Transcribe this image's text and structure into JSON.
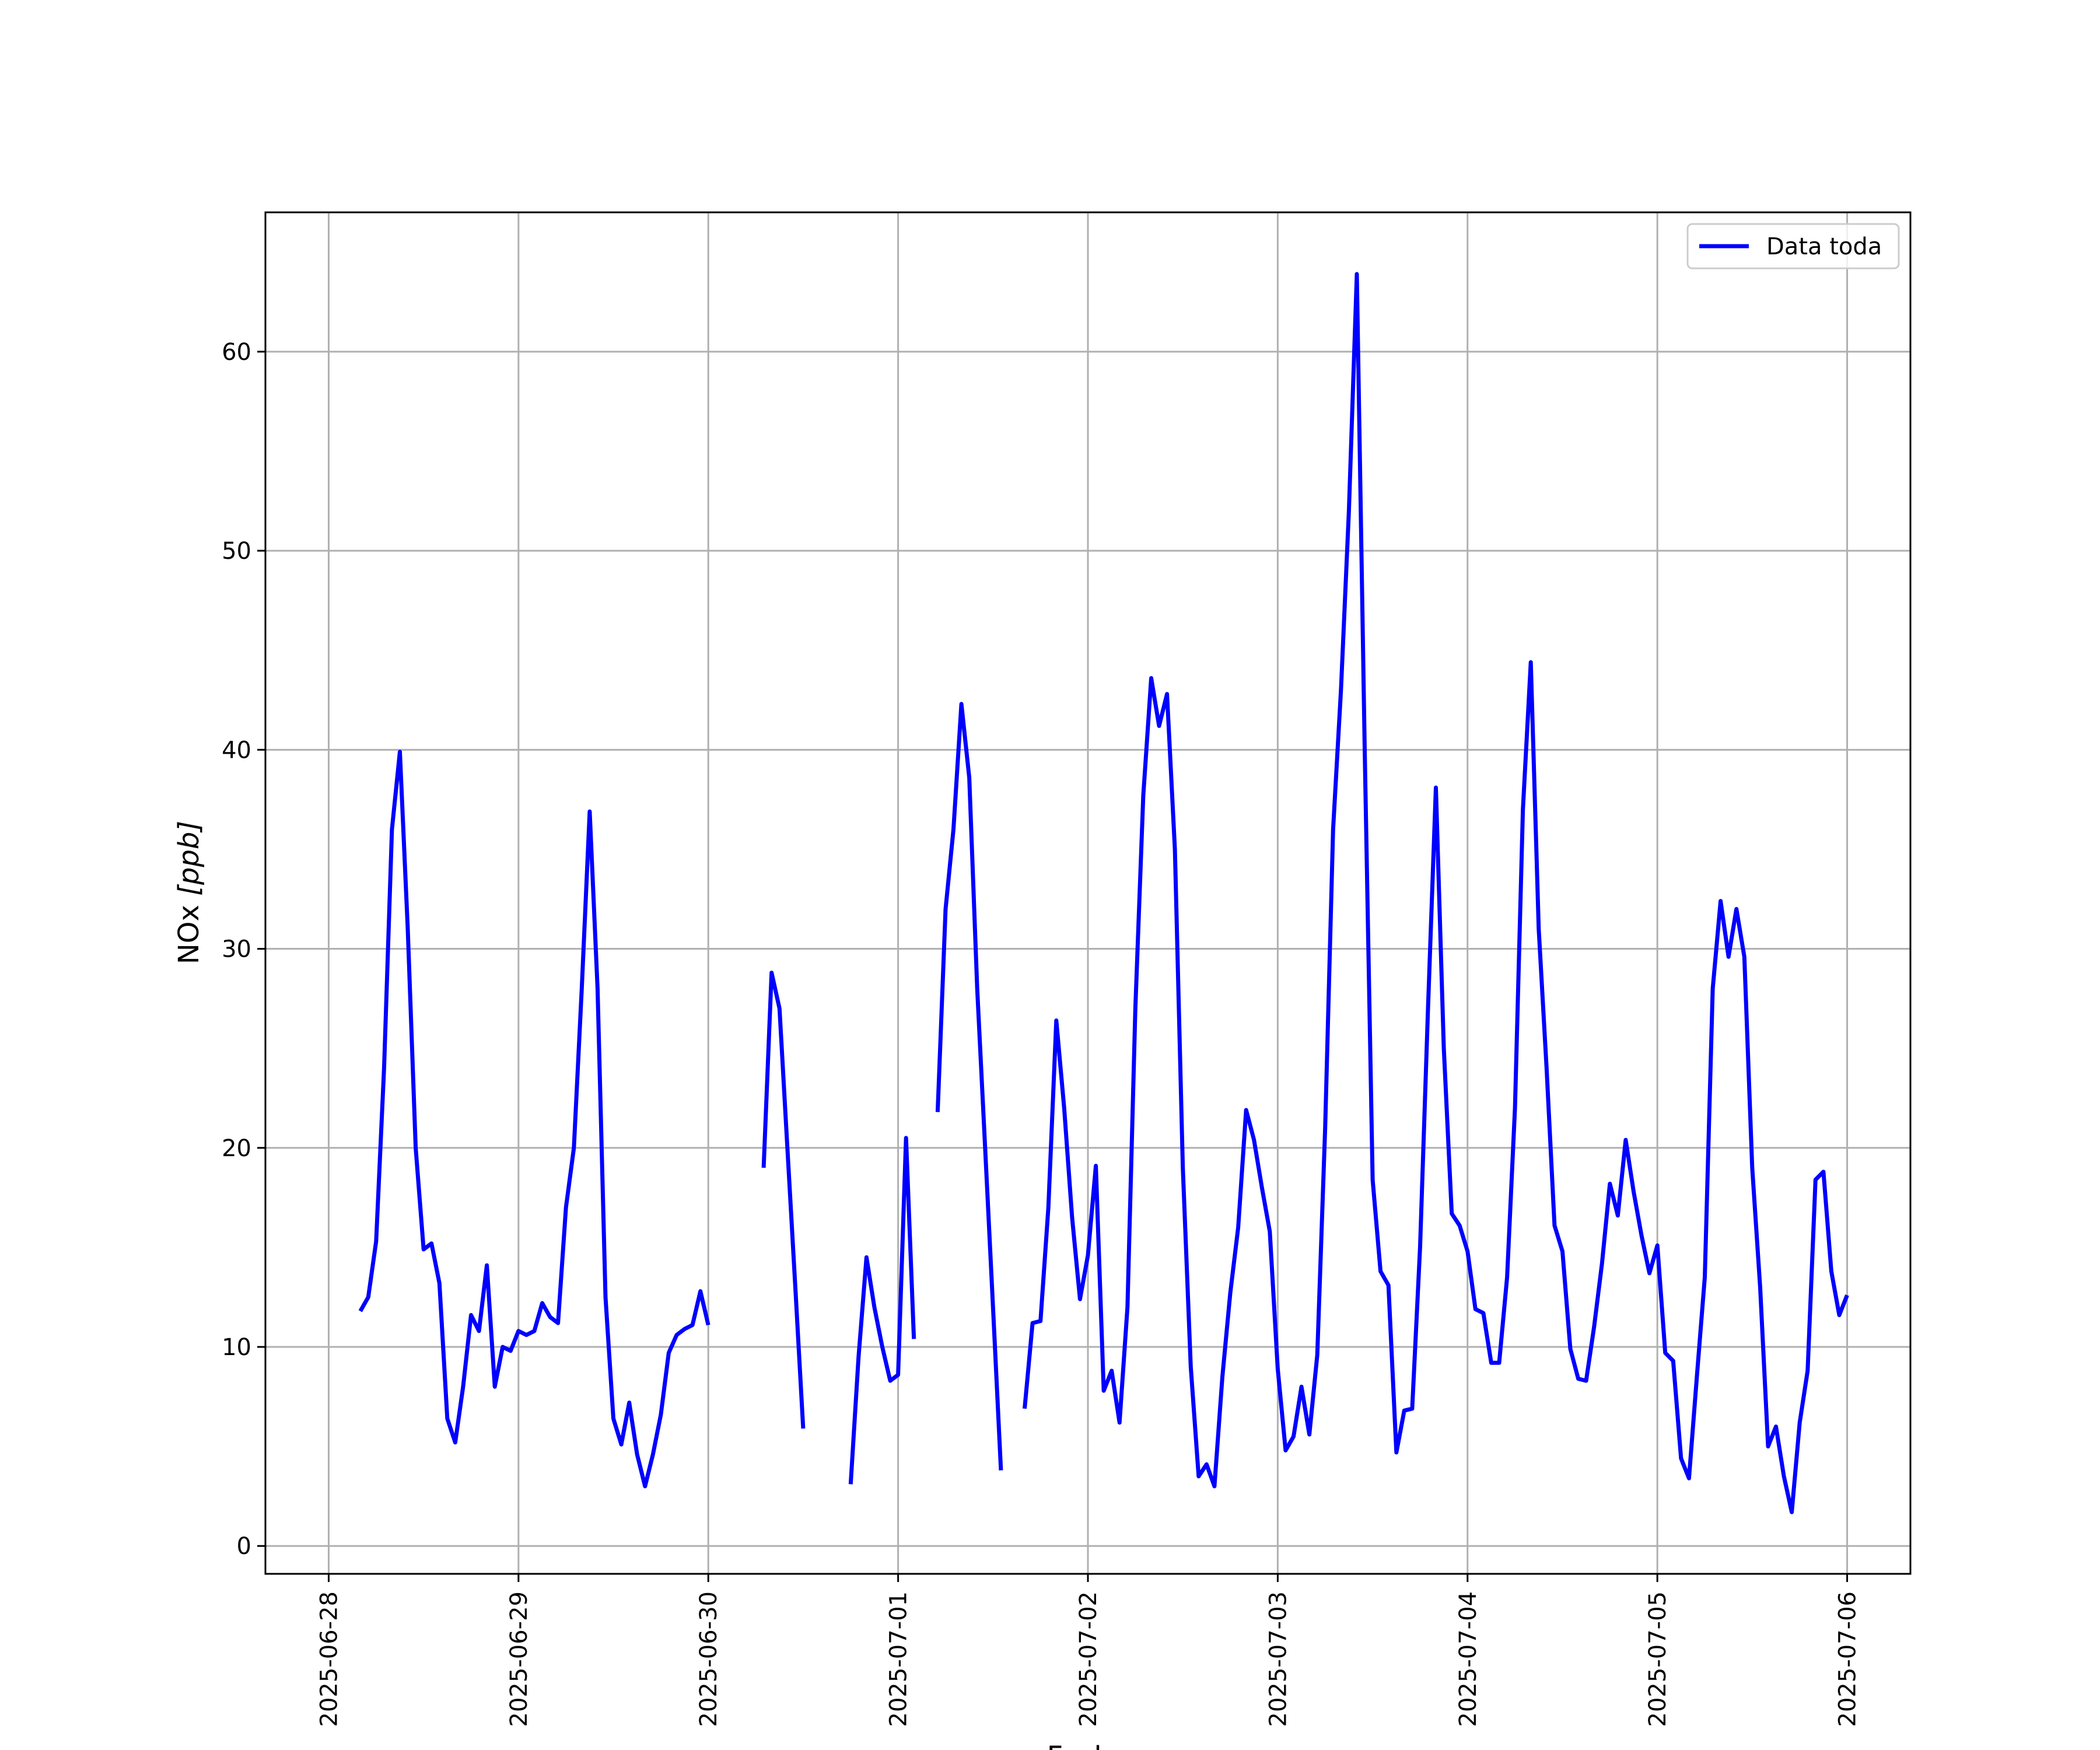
{
  "chart_data": {
    "type": "line",
    "title": "",
    "xlabel": "Fecha",
    "ylabel_prefix": "NOx ",
    "ylabel_unit": "[ppb]",
    "xlim": [
      "2025-06-27T16:00",
      "2025-07-06T08:00"
    ],
    "ylim": [
      -1.4,
      67
    ],
    "x_ticks": [
      "2025-06-28",
      "2025-06-29",
      "2025-06-30",
      "2025-07-01",
      "2025-07-02",
      "2025-07-03",
      "2025-07-04",
      "2025-07-05",
      "2025-07-06"
    ],
    "y_ticks": [
      "0",
      "10",
      "20",
      "30",
      "40",
      "50",
      "60"
    ],
    "y_tick_values": [
      0,
      10,
      20,
      30,
      40,
      50,
      60
    ],
    "grid": true,
    "legend_position": "top-right",
    "series_color": "#0000ff",
    "series": [
      {
        "name": "Data toda",
        "segments": [
          [
            [
              "2025-06-28T04:00",
              11.8
            ],
            [
              "2025-06-28T05:00",
              12.5
            ],
            [
              "2025-06-28T06:00",
              15.3
            ],
            [
              "2025-06-28T07:00",
              24.0
            ],
            [
              "2025-06-28T08:00",
              36.0
            ],
            [
              "2025-06-28T09:00",
              39.9
            ],
            [
              "2025-06-28T10:00",
              31.0
            ],
            [
              "2025-06-28T11:00",
              20.0
            ],
            [
              "2025-06-28T12:00",
              14.9
            ],
            [
              "2025-06-28T13:00",
              15.2
            ],
            [
              "2025-06-28T14:00",
              13.2
            ],
            [
              "2025-06-28T15:00",
              6.4
            ],
            [
              "2025-06-28T16:00",
              5.2
            ],
            [
              "2025-06-28T17:00",
              8.0
            ],
            [
              "2025-06-28T18:00",
              11.6
            ],
            [
              "2025-06-28T19:00",
              10.8
            ],
            [
              "2025-06-28T20:00",
              14.1
            ],
            [
              "2025-06-28T21:00",
              8.0
            ],
            [
              "2025-06-28T22:00",
              10.0
            ],
            [
              "2025-06-28T23:00",
              9.8
            ],
            [
              "2025-06-29T00:00",
              10.8
            ],
            [
              "2025-06-29T01:00",
              10.6
            ],
            [
              "2025-06-29T02:00",
              10.8
            ],
            [
              "2025-06-29T03:00",
              12.2
            ],
            [
              "2025-06-29T04:00",
              11.5
            ],
            [
              "2025-06-29T05:00",
              11.2
            ],
            [
              "2025-06-29T06:00",
              17.0
            ],
            [
              "2025-06-29T07:00",
              20.0
            ],
            [
              "2025-06-29T08:00",
              28.0
            ],
            [
              "2025-06-29T09:00",
              36.9
            ],
            [
              "2025-06-29T10:00",
              28.0
            ],
            [
              "2025-06-29T11:00",
              12.5
            ],
            [
              "2025-06-29T12:00",
              6.4
            ],
            [
              "2025-06-29T13:00",
              5.1
            ],
            [
              "2025-06-29T14:00",
              7.2
            ],
            [
              "2025-06-29T15:00",
              4.6
            ],
            [
              "2025-06-29T16:00",
              3.0
            ],
            [
              "2025-06-29T17:00",
              4.6
            ],
            [
              "2025-06-29T18:00",
              6.6
            ],
            [
              "2025-06-29T19:00",
              9.7
            ],
            [
              "2025-06-29T20:00",
              10.6
            ],
            [
              "2025-06-29T21:00",
              10.9
            ],
            [
              "2025-06-29T22:00",
              11.1
            ],
            [
              "2025-06-29T23:00",
              12.8
            ],
            [
              "2025-06-30T00:00",
              11.1
            ]
          ],
          [
            [
              "2025-06-30T07:00",
              19.0
            ],
            [
              "2025-06-30T08:00",
              28.8
            ],
            [
              "2025-06-30T09:00",
              27.0
            ],
            [
              "2025-06-30T10:00",
              20.0
            ],
            [
              "2025-06-30T11:00",
              13.0
            ],
            [
              "2025-06-30T12:00",
              5.9
            ]
          ],
          [
            [
              "2025-06-30T18:00",
              3.1
            ],
            [
              "2025-06-30T19:00",
              9.5
            ],
            [
              "2025-06-30T20:00",
              14.5
            ],
            [
              "2025-06-30T21:00",
              12.0
            ],
            [
              "2025-06-30T22:00",
              10.0
            ],
            [
              "2025-06-30T23:00",
              8.3
            ],
            [
              "2025-07-01T00:00",
              8.6
            ],
            [
              "2025-07-01T01:00",
              20.5
            ],
            [
              "2025-07-01T02:00",
              10.4
            ]
          ],
          [
            [
              "2025-07-01T05:00",
              21.8
            ],
            [
              "2025-07-01T06:00",
              32.0
            ],
            [
              "2025-07-01T07:00",
              36.0
            ],
            [
              "2025-07-01T08:00",
              42.3
            ],
            [
              "2025-07-01T09:00",
              38.6
            ],
            [
              "2025-07-01T10:00",
              28.0
            ],
            [
              "2025-07-01T11:00",
              20.0
            ],
            [
              "2025-07-01T12:00",
              12.0
            ],
            [
              "2025-07-01T13:00",
              3.8
            ]
          ],
          [
            [
              "2025-07-01T16:00",
              6.9
            ],
            [
              "2025-07-01T17:00",
              11.2
            ],
            [
              "2025-07-01T18:00",
              11.3
            ],
            [
              "2025-07-01T19:00",
              17.0
            ],
            [
              "2025-07-01T20:00",
              26.4
            ],
            [
              "2025-07-01T21:00",
              22.0
            ],
            [
              "2025-07-01T22:00",
              16.5
            ],
            [
              "2025-07-01T23:00",
              12.4
            ],
            [
              "2025-07-02T00:00",
              14.6
            ],
            [
              "2025-07-02T01:00",
              19.1
            ],
            [
              "2025-07-02T02:00",
              7.8
            ],
            [
              "2025-07-02T03:00",
              8.8
            ],
            [
              "2025-07-02T04:00",
              6.2
            ],
            [
              "2025-07-02T05:00",
              12.0
            ],
            [
              "2025-07-02T06:00",
              27.0
            ],
            [
              "2025-07-02T07:00",
              37.7
            ],
            [
              "2025-07-02T08:00",
              43.6
            ],
            [
              "2025-07-02T09:00",
              41.2
            ],
            [
              "2025-07-02T10:00",
              42.8
            ],
            [
              "2025-07-02T11:00",
              35.0
            ],
            [
              "2025-07-02T12:00",
              19.0
            ],
            [
              "2025-07-02T13:00",
              9.0
            ],
            [
              "2025-07-02T14:00",
              3.5
            ],
            [
              "2025-07-02T15:00",
              4.1
            ],
            [
              "2025-07-02T16:00",
              3.0
            ],
            [
              "2025-07-02T17:00",
              8.5
            ],
            [
              "2025-07-02T18:00",
              12.7
            ],
            [
              "2025-07-02T19:00",
              16.0
            ],
            [
              "2025-07-02T20:00",
              21.9
            ],
            [
              "2025-07-02T21:00",
              20.4
            ],
            [
              "2025-07-02T22:00",
              18.0
            ],
            [
              "2025-07-02T23:00",
              15.8
            ],
            [
              "2025-07-03T00:00",
              8.9
            ],
            [
              "2025-07-03T01:00",
              4.8
            ],
            [
              "2025-07-03T02:00",
              5.5
            ],
            [
              "2025-07-03T03:00",
              8.0
            ],
            [
              "2025-07-03T04:00",
              5.6
            ],
            [
              "2025-07-03T05:00",
              9.6
            ],
            [
              "2025-07-03T06:00",
              21.0
            ],
            [
              "2025-07-03T07:00",
              36.0
            ],
            [
              "2025-07-03T08:00",
              43.0
            ],
            [
              "2025-07-03T09:00",
              52.0
            ],
            [
              "2025-07-03T10:00",
              63.9
            ],
            [
              "2025-07-03T11:00",
              40.0
            ],
            [
              "2025-07-03T12:00",
              18.4
            ],
            [
              "2025-07-03T13:00",
              13.8
            ],
            [
              "2025-07-03T14:00",
              13.1
            ],
            [
              "2025-07-03T15:00",
              4.7
            ],
            [
              "2025-07-03T16:00",
              6.8
            ],
            [
              "2025-07-03T17:00",
              6.9
            ],
            [
              "2025-07-03T18:00",
              15.0
            ],
            [
              "2025-07-03T19:00",
              27.0
            ],
            [
              "2025-07-03T20:00",
              38.1
            ],
            [
              "2025-07-03T21:00",
              25.0
            ],
            [
              "2025-07-03T22:00",
              16.7
            ],
            [
              "2025-07-03T23:00",
              16.1
            ],
            [
              "2025-07-04T00:00",
              14.8
            ],
            [
              "2025-07-04T01:00",
              11.9
            ],
            [
              "2025-07-04T02:00",
              11.7
            ],
            [
              "2025-07-04T03:00",
              9.2
            ],
            [
              "2025-07-04T04:00",
              9.2
            ],
            [
              "2025-07-04T05:00",
              13.5
            ],
            [
              "2025-07-04T06:00",
              22.0
            ],
            [
              "2025-07-04T07:00",
              37.0
            ],
            [
              "2025-07-04T08:00",
              44.4
            ],
            [
              "2025-07-04T09:00",
              31.0
            ],
            [
              "2025-07-04T10:00",
              24.0
            ],
            [
              "2025-07-04T11:00",
              16.1
            ],
            [
              "2025-07-04T12:00",
              14.8
            ],
            [
              "2025-07-04T13:00",
              9.9
            ],
            [
              "2025-07-04T14:00",
              8.4
            ],
            [
              "2025-07-04T15:00",
              8.3
            ],
            [
              "2025-07-04T16:00",
              11.0
            ],
            [
              "2025-07-04T17:00",
              14.2
            ],
            [
              "2025-07-04T18:00",
              18.2
            ],
            [
              "2025-07-04T19:00",
              16.6
            ],
            [
              "2025-07-04T20:00",
              20.4
            ],
            [
              "2025-07-04T21:00",
              17.8
            ],
            [
              "2025-07-04T22:00",
              15.6
            ],
            [
              "2025-07-04T23:00",
              13.7
            ],
            [
              "2025-07-05T00:00",
              15.1
            ],
            [
              "2025-07-05T01:00",
              9.7
            ],
            [
              "2025-07-05T02:00",
              9.3
            ],
            [
              "2025-07-05T03:00",
              4.4
            ],
            [
              "2025-07-05T04:00",
              3.4
            ],
            [
              "2025-07-05T05:00",
              8.5
            ],
            [
              "2025-07-05T06:00",
              13.5
            ],
            [
              "2025-07-05T07:00",
              28.0
            ],
            [
              "2025-07-05T08:00",
              32.4
            ],
            [
              "2025-07-05T09:00",
              29.6
            ],
            [
              "2025-07-05T10:00",
              32.0
            ],
            [
              "2025-07-05T11:00",
              29.6
            ],
            [
              "2025-07-05T12:00",
              19.0
            ],
            [
              "2025-07-05T13:00",
              13.0
            ],
            [
              "2025-07-05T14:00",
              5.0
            ],
            [
              "2025-07-05T15:00",
              6.0
            ],
            [
              "2025-07-05T16:00",
              3.5
            ],
            [
              "2025-07-05T17:00",
              1.7
            ],
            [
              "2025-07-05T18:00",
              6.2
            ],
            [
              "2025-07-05T19:00",
              8.8
            ],
            [
              "2025-07-05T20:00",
              18.4
            ],
            [
              "2025-07-05T21:00",
              18.8
            ],
            [
              "2025-07-05T22:00",
              13.8
            ],
            [
              "2025-07-05T23:00",
              11.6
            ],
            [
              "2025-07-06T00:00",
              12.6
            ]
          ]
        ]
      }
    ]
  }
}
